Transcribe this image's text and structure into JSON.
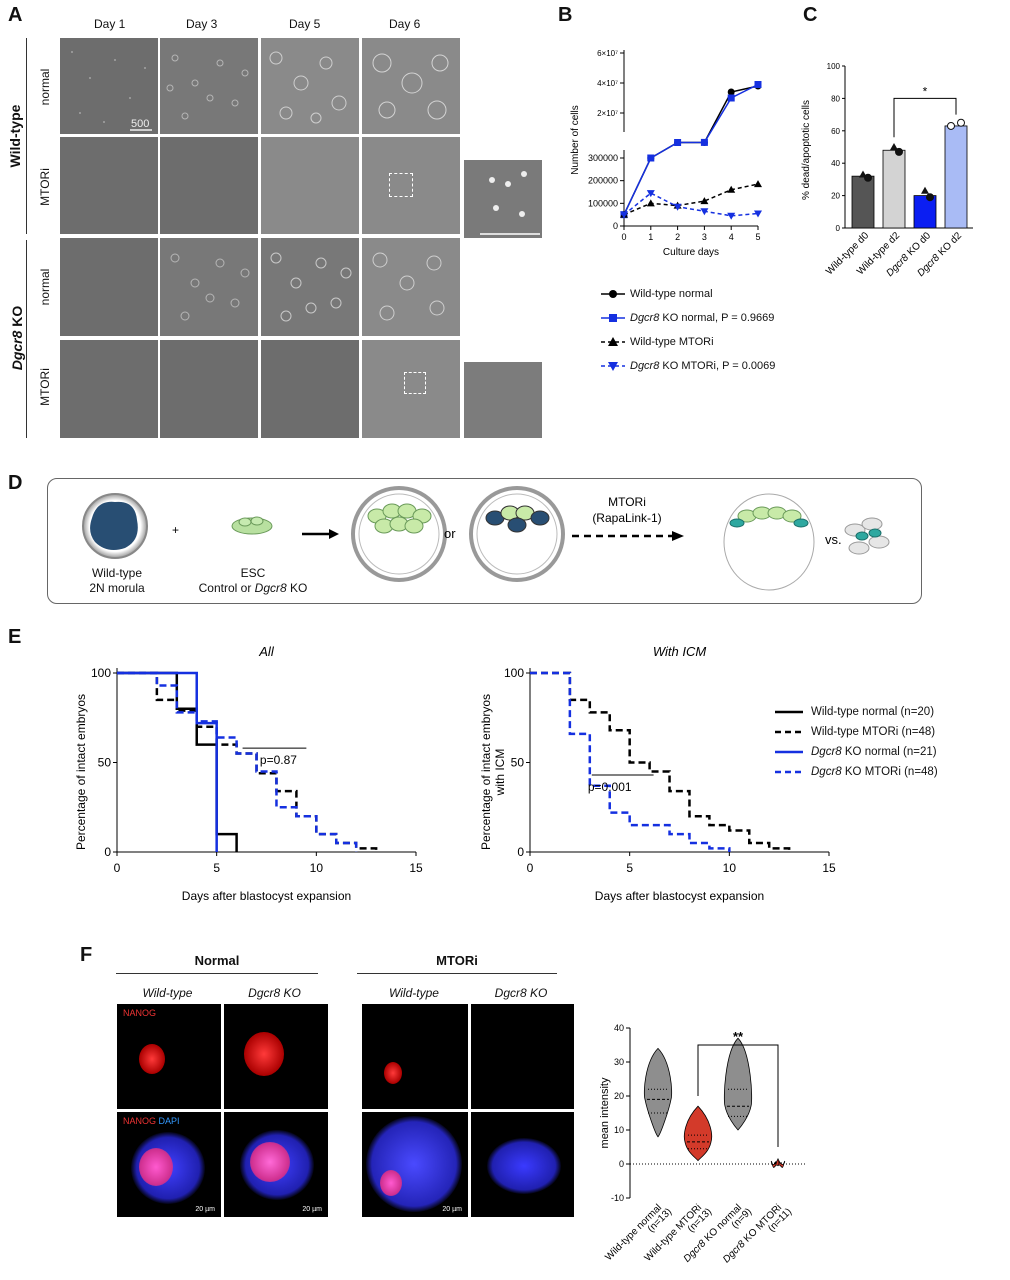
{
  "panel_labels": {
    "A": "A",
    "B": "B",
    "C": "C",
    "D": "D",
    "E": "E",
    "F": "F"
  },
  "panelA": {
    "days": [
      "Day 1",
      "Day 3",
      "Day 5",
      "Day 6"
    ],
    "groups": [
      "Wild-type",
      "Dgcr8 KO"
    ],
    "group_suffix": " KO",
    "group_gene": "Dgcr8",
    "rows": [
      "normal",
      "MTORi",
      "normal",
      "MTORi"
    ],
    "scale_text": "500"
  },
  "panelB": {
    "ylabel": "Number of cells",
    "xlabel": "Culture days",
    "legend": [
      {
        "label": "Wild-type normal",
        "gene": "",
        "rest": "",
        "color": "#000000",
        "marker": "circle",
        "dash": false
      },
      {
        "label": "",
        "gene": "Dgcr8",
        "rest": " KO normal, P = 0.9669",
        "color": "#1530e0",
        "marker": "square",
        "dash": false
      },
      {
        "label": "Wild-type MTORi",
        "gene": "",
        "rest": "",
        "color": "#000000",
        "marker": "triangle",
        "dash": true
      },
      {
        "label": "",
        "gene": "Dgcr8",
        "rest": " KO MTORi, P = 0.0069",
        "color": "#1530e0",
        "marker": "tri-down",
        "dash": true
      }
    ]
  },
  "panelC": {
    "ylabel": "% dead/apoptotic cells",
    "sig": "*"
  },
  "panelD": {
    "morula": "Wild-type\n2N morula",
    "morula_l1": "Wild-type",
    "morula_l2": "2N morula",
    "plus": "+",
    "esc_l1": "ESC",
    "esc_l2a": "Control or ",
    "esc_l2b": "Dgcr8",
    "esc_l2c": " KO",
    "or": "or",
    "mtori_l1": "MTORi",
    "mtori_l2": "(RapaLink-1)",
    "vs": "vs."
  },
  "panelE": {
    "left_title": "All",
    "right_title": "With ICM",
    "left_ylabel": "Percentage of intact embryos",
    "right_ylabel_l1": "Percentage of intact embryos",
    "right_ylabel_l2": "with ICM",
    "xlabel": "Days after blastocyst expansion",
    "p_left": "p=0.87",
    "p_right": "p=0.001",
    "legend": [
      {
        "gene": "",
        "label": "Wild-type normal (n=20)",
        "color": "#000000",
        "dash": false
      },
      {
        "gene": "",
        "label": "Wild-type MTORi (n=48)",
        "color": "#000000",
        "dash": true
      },
      {
        "gene": "Dgcr8",
        "label": " KO normal (n=21)",
        "color": "#1530e0",
        "dash": false
      },
      {
        "gene": "Dgcr8",
        "label": " KO MTORi (n=48)",
        "color": "#1530e0",
        "dash": true
      }
    ]
  },
  "panelF": {
    "normal_header": "Normal",
    "mtori_header": "MTORi",
    "col_wt": "Wild-type",
    "col_ko": "Dgcr8 KO",
    "nanog": "NANOG",
    "dapi": "DAPI",
    "scale": "20 µm",
    "ylabel": "mean intensity",
    "sig": "**"
  },
  "chart_data": [
    {
      "id": "B",
      "type": "line",
      "xlabel": "Culture days",
      "ylabel": "Number of cells",
      "x": [
        0,
        1,
        2,
        3,
        4,
        5
      ],
      "series": [
        {
          "name": "Wild-type normal",
          "values": [
            50000,
            300000,
            330000,
            370000,
            34000000,
            38000000
          ]
        },
        {
          "name": "Dgcr8 KO normal, P = 0.9669",
          "values": [
            50000,
            300000,
            330000,
            400000,
            30000000,
            39000000
          ]
        },
        {
          "name": "Wild-type MTORi",
          "values": [
            50000,
            100000,
            90000,
            110000,
            160000,
            185000
          ]
        },
        {
          "name": "Dgcr8 KO MTORi, P = 0.0069",
          "values": [
            50000,
            145000,
            85000,
            65000,
            45000,
            55000
          ]
        }
      ],
      "yticks_lower": [
        "0",
        "100000",
        "200000",
        "300000"
      ],
      "yticks_upper": [
        "2×10⁷",
        "4×10⁷",
        "6×10⁷"
      ],
      "xticks": [
        "0",
        "1",
        "2",
        "3",
        "4",
        "5"
      ]
    },
    {
      "id": "C",
      "type": "bar",
      "categories": [
        "Wild-type d0",
        "Wild-type d2",
        "Dgcr8 KO d0",
        "Dgcr8 KO d2"
      ],
      "values": [
        32,
        48,
        20,
        63
      ],
      "points": [
        [
          33,
          31
        ],
        [
          50,
          47
        ],
        [
          23,
          19
        ],
        [
          63,
          65
        ]
      ],
      "colors": [
        "#555555",
        "#d3d3d3",
        "#0b1ef2",
        "#a9bbf5"
      ],
      "ylabel": "% dead/apoptotic cells",
      "ylim": [
        0,
        100
      ],
      "yticks": [
        "0",
        "20",
        "40",
        "60",
        "80",
        "100"
      ]
    },
    {
      "id": "E-All",
      "type": "line",
      "title": "All",
      "xlabel": "Days after blastocyst expansion",
      "ylabel": "Percentage of intact embryos",
      "xlim": [
        0,
        15
      ],
      "ylim": [
        0,
        100
      ],
      "xticks": [
        "0",
        "5",
        "10",
        "15"
      ],
      "yticks": [
        "0",
        "50",
        "100"
      ],
      "series": [
        {
          "name": "Wild-type normal (n=20)",
          "steps": [
            [
              0,
              100
            ],
            [
              3,
              100
            ],
            [
              3,
              80
            ],
            [
              4,
              80
            ],
            [
              4,
              60
            ],
            [
              5,
              60
            ],
            [
              5,
              10
            ],
            [
              6,
              10
            ],
            [
              6,
              0
            ]
          ]
        },
        {
          "name": "Wild-type MTORi (n=48)",
          "steps": [
            [
              0,
              100
            ],
            [
              2,
              100
            ],
            [
              2,
              85
            ],
            [
              3,
              85
            ],
            [
              3,
              79
            ],
            [
              4,
              79
            ],
            [
              4,
              70
            ],
            [
              5,
              70
            ],
            [
              5,
              60
            ],
            [
              6,
              60
            ],
            [
              6,
              55
            ],
            [
              7,
              55
            ],
            [
              7,
              44
            ],
            [
              8,
              44
            ],
            [
              8,
              34
            ],
            [
              9,
              34
            ],
            [
              9,
              20
            ],
            [
              10,
              20
            ],
            [
              10,
              10
            ],
            [
              11,
              10
            ],
            [
              11,
              5
            ],
            [
              12,
              5
            ],
            [
              12,
              2
            ],
            [
              13,
              2
            ],
            [
              13,
              0
            ]
          ]
        },
        {
          "name": "Dgcr8 KO normal (n=21)",
          "steps": [
            [
              0,
              100
            ],
            [
              4,
              100
            ],
            [
              4,
              72
            ],
            [
              5,
              72
            ],
            [
              5,
              0
            ]
          ]
        },
        {
          "name": "Dgcr8 KO MTORi (n=48)",
          "steps": [
            [
              0,
              100
            ],
            [
              2,
              100
            ],
            [
              2,
              93
            ],
            [
              3,
              93
            ],
            [
              3,
              78
            ],
            [
              4,
              78
            ],
            [
              4,
              73
            ],
            [
              5,
              73
            ],
            [
              5,
              64
            ],
            [
              6,
              64
            ],
            [
              6,
              55
            ],
            [
              7,
              55
            ],
            [
              7,
              45
            ],
            [
              8,
              45
            ],
            [
              8,
              25
            ],
            [
              9,
              25
            ],
            [
              9,
              20
            ],
            [
              10,
              20
            ],
            [
              10,
              10
            ],
            [
              11,
              10
            ],
            [
              11,
              5
            ],
            [
              12,
              5
            ],
            [
              12,
              0
            ]
          ]
        }
      ]
    },
    {
      "id": "E-WithICM",
      "type": "line",
      "title": "With ICM",
      "xlabel": "Days after blastocyst expansion",
      "ylabel": "Percentage of intact embryos with ICM",
      "xlim": [
        0,
        15
      ],
      "ylim": [
        0,
        100
      ],
      "xticks": [
        "0",
        "5",
        "10",
        "15"
      ],
      "yticks": [
        "0",
        "50",
        "100"
      ],
      "series": [
        {
          "name": "Wild-type MTORi (n=48)",
          "steps": [
            [
              0,
              100
            ],
            [
              2,
              100
            ],
            [
              2,
              85
            ],
            [
              3,
              85
            ],
            [
              3,
              78
            ],
            [
              4,
              78
            ],
            [
              4,
              68
            ],
            [
              5,
              68
            ],
            [
              5,
              50
            ],
            [
              6,
              50
            ],
            [
              6,
              45
            ],
            [
              7,
              45
            ],
            [
              7,
              34
            ],
            [
              8,
              34
            ],
            [
              8,
              20
            ],
            [
              9,
              20
            ],
            [
              9,
              15
            ],
            [
              10,
              15
            ],
            [
              10,
              12
            ],
            [
              11,
              12
            ],
            [
              11,
              5
            ],
            [
              12,
              5
            ],
            [
              12,
              2
            ],
            [
              13,
              2
            ],
            [
              13,
              0
            ]
          ]
        },
        {
          "name": "Dgcr8 KO MTORi (n=48)",
          "steps": [
            [
              0,
              100
            ],
            [
              2,
              100
            ],
            [
              2,
              66
            ],
            [
              3,
              66
            ],
            [
              3,
              37
            ],
            [
              4,
              37
            ],
            [
              4,
              22
            ],
            [
              5,
              22
            ],
            [
              5,
              15
            ],
            [
              7,
              15
            ],
            [
              7,
              10
            ],
            [
              8,
              10
            ],
            [
              8,
              5
            ],
            [
              9,
              5
            ],
            [
              9,
              2
            ],
            [
              10,
              2
            ],
            [
              10,
              0
            ]
          ]
        }
      ]
    },
    {
      "id": "F",
      "type": "scatter",
      "ylabel": "mean intensity",
      "ylim": [
        -10,
        40
      ],
      "yticks": [
        "-10",
        "0",
        "10",
        "20",
        "30",
        "40"
      ],
      "categories": [
        "Wild-type normal\n(n=13)",
        "Wild-type MTORi\n(n=13)",
        "Dgcr8 KO normal\n(n=9)",
        "Dgcr8 KO MTORi\n(n=11)"
      ],
      "cat_lines": [
        [
          "Wild-type normal",
          "(n=13)"
        ],
        [
          "Wild-type MTORi",
          "(n=13)"
        ],
        [
          "Dgcr8 KO normal",
          "(n=9)"
        ],
        [
          "Dgcr8 KO MTORi",
          "(n=11)"
        ]
      ],
      "medians": [
        19,
        6.5,
        17,
        0.3
      ],
      "q1": [
        15,
        4.5,
        14,
        0
      ],
      "q3": [
        22,
        8.5,
        22,
        0.6
      ],
      "ranges": [
        [
          8,
          34
        ],
        [
          1,
          17
        ],
        [
          10,
          37
        ],
        [
          -0.5,
          1.5
        ]
      ],
      "colors": [
        "#8e8e8e",
        "#d33a2a",
        "#8e8e8e",
        "#d33a2a"
      ]
    }
  ]
}
